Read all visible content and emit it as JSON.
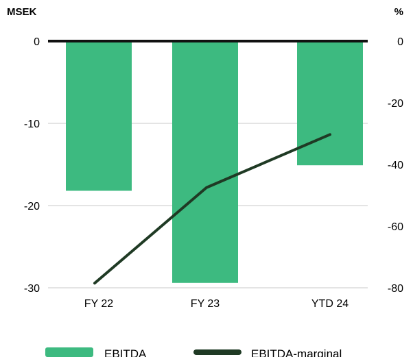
{
  "chart_data": {
    "type": "bar",
    "categories": [
      "FY 22",
      "FY 23",
      "YTD 24"
    ],
    "series": [
      {
        "name": "EBITDA",
        "type": "bar",
        "axis": "left",
        "color": "#3dba80",
        "values": [
          -18.2,
          -29.4,
          -15.1
        ]
      },
      {
        "name": "EBITDA-marginal",
        "type": "line",
        "axis": "right",
        "color": "#1f3a24",
        "values": [
          -78.5,
          -47.5,
          -30.3
        ]
      }
    ],
    "y_left": {
      "label": "MSEK",
      "ylim": [
        -30,
        0
      ],
      "ticks": [
        0,
        -10,
        -20,
        -30
      ]
    },
    "y_right": {
      "label": "%",
      "ylim": [
        -80,
        0
      ],
      "ticks": [
        0,
        -20,
        -40,
        -60,
        -80
      ]
    },
    "grid": true,
    "legend": "bottom"
  }
}
